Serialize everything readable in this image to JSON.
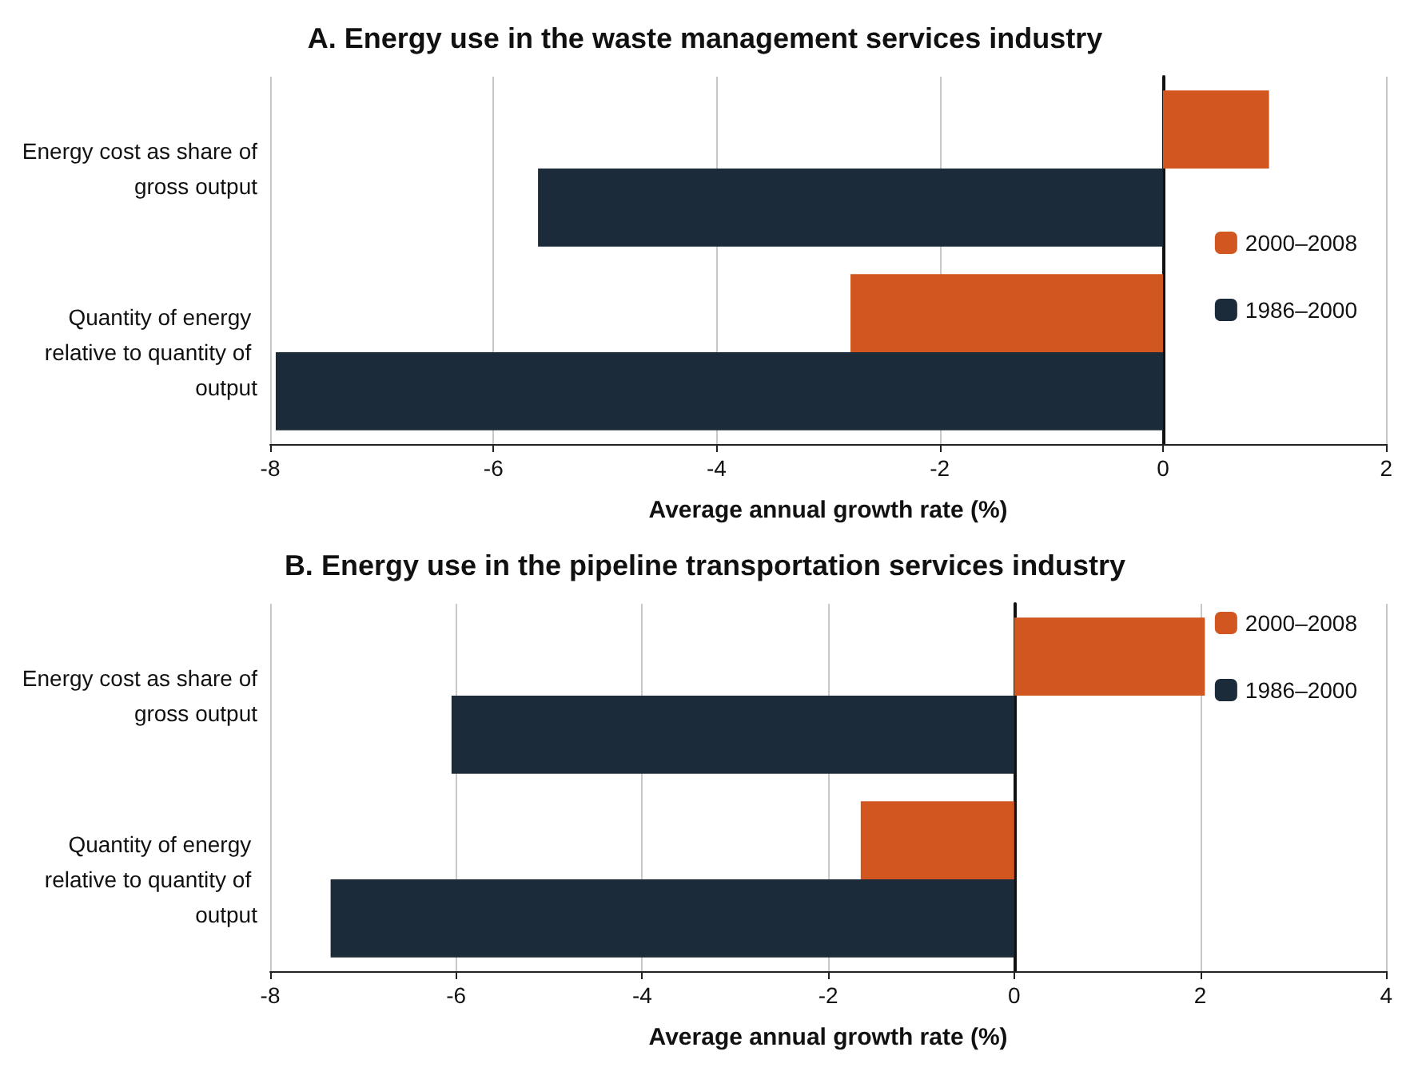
{
  "chart_data": [
    {
      "type": "bar",
      "orientation": "horizontal",
      "title": "A. Energy use in the waste management services industry",
      "xlabel": "Average annual growth rate (%)",
      "categories": [
        "Energy cost as share of gross output",
        "Quantity of energy relative to quantity of output"
      ],
      "series": [
        {
          "name": "2000–2008",
          "color": "#d2561f",
          "values": [
            0.95,
            -2.8
          ]
        },
        {
          "name": "1986–2000",
          "color": "#1c2b3a",
          "values": [
            -5.6,
            -7.95
          ]
        }
      ],
      "xlim": [
        -8,
        2
      ],
      "xticks": [
        -8,
        -6,
        -4,
        -2,
        0,
        2
      ],
      "grid": "x",
      "legend": "right"
    },
    {
      "type": "bar",
      "orientation": "horizontal",
      "title": "B. Energy use in the pipeline transportation services industry",
      "xlabel": "Average annual growth rate (%)",
      "categories": [
        "Energy cost as share of gross output",
        "Quantity of energy relative to quantity of output"
      ],
      "series": [
        {
          "name": "2000–2008",
          "color": "#d2561f",
          "values": [
            2.05,
            -1.65
          ]
        },
        {
          "name": "1986–2000",
          "color": "#1c2b3a",
          "values": [
            -6.05,
            -7.35
          ]
        }
      ],
      "xlim": [
        -8,
        4
      ],
      "xticks": [
        -8,
        -6,
        -4,
        -2,
        0,
        2,
        4
      ],
      "grid": "x",
      "legend": "top right"
    }
  ]
}
